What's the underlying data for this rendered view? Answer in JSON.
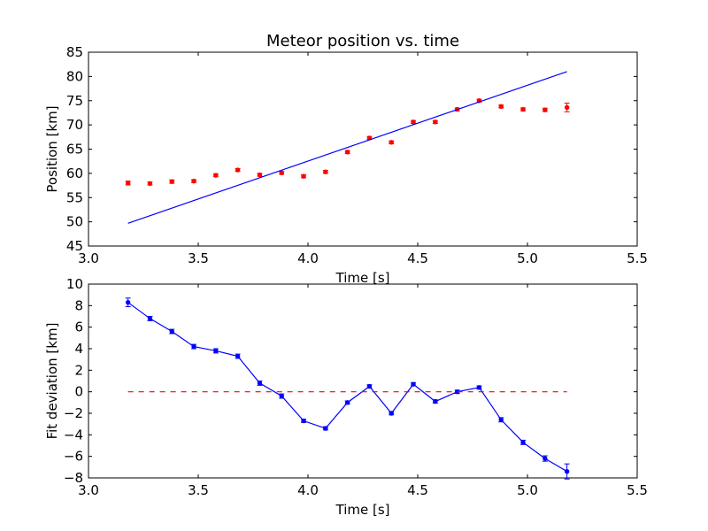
{
  "chart_data": [
    {
      "type": "scatter",
      "title": "Meteor position vs. time",
      "xlabel": "Time [s]",
      "ylabel": "Position [km]",
      "xlim": [
        3.0,
        5.5
      ],
      "ylim": [
        45,
        85
      ],
      "xticks": [
        "3.0",
        "3.5",
        "4.0",
        "4.5",
        "5.0",
        "5.5"
      ],
      "yticks": [
        "45",
        "50",
        "55",
        "60",
        "65",
        "70",
        "75",
        "80",
        "85"
      ],
      "grid": false,
      "series": [
        {
          "kind": "errorbar",
          "color": "#ff0000",
          "x": [
            3.18,
            3.28,
            3.38,
            3.48,
            3.58,
            3.68,
            3.78,
            3.88,
            3.98,
            4.08,
            4.18,
            4.28,
            4.38,
            4.48,
            4.58,
            4.68,
            4.78,
            4.88,
            4.98,
            5.08,
            5.18
          ],
          "y": [
            58.0,
            57.9,
            58.3,
            58.4,
            59.6,
            60.7,
            59.7,
            60.1,
            59.4,
            60.3,
            64.4,
            67.3,
            66.4,
            70.6,
            70.6,
            73.2,
            75.0,
            73.8,
            73.2,
            73.1,
            73.6
          ],
          "yerr": [
            0.4,
            0.3,
            0.35,
            0.3,
            0.3,
            0.3,
            0.3,
            0.3,
            0.3,
            0.3,
            0.3,
            0.3,
            0.3,
            0.3,
            0.3,
            0.3,
            0.3,
            0.3,
            0.3,
            0.35,
            0.9
          ]
        },
        {
          "kind": "line",
          "color": "#0000ff",
          "x": [
            3.18,
            5.18
          ],
          "y": [
            49.7,
            81.0
          ]
        }
      ]
    },
    {
      "type": "line",
      "title": "",
      "xlabel": "Time [s]",
      "ylabel": "Fit deviation [km]",
      "xlim": [
        3.0,
        5.5
      ],
      "ylim": [
        -8,
        10
      ],
      "xticks": [
        "3.0",
        "3.5",
        "4.0",
        "4.5",
        "5.0",
        "5.5"
      ],
      "yticks": [
        "−8",
        "−6",
        "−4",
        "−2",
        "0",
        "2",
        "4",
        "6",
        "8",
        "10"
      ],
      "grid": false,
      "series": [
        {
          "kind": "errorbar-line",
          "color": "#0000ff",
          "x": [
            3.18,
            3.28,
            3.38,
            3.48,
            3.58,
            3.68,
            3.78,
            3.88,
            3.98,
            4.08,
            4.18,
            4.28,
            4.38,
            4.48,
            4.58,
            4.68,
            4.78,
            4.88,
            4.98,
            5.08,
            5.18
          ],
          "y": [
            8.3,
            6.8,
            5.6,
            4.2,
            3.8,
            3.3,
            0.8,
            -0.4,
            -2.7,
            -3.4,
            -1.0,
            0.5,
            -2.0,
            0.7,
            -0.9,
            0.0,
            0.4,
            -2.6,
            -4.7,
            -6.2,
            -7.4
          ],
          "yerr": [
            0.4,
            0.2,
            0.2,
            0.2,
            0.2,
            0.2,
            0.2,
            0.2,
            0.15,
            0.15,
            0.15,
            0.15,
            0.15,
            0.15,
            0.15,
            0.15,
            0.15,
            0.2,
            0.2,
            0.25,
            0.7
          ]
        },
        {
          "kind": "dashed-line",
          "color": "#ff0000",
          "x": [
            3.18,
            5.18
          ],
          "y": [
            0,
            0
          ]
        }
      ]
    }
  ]
}
